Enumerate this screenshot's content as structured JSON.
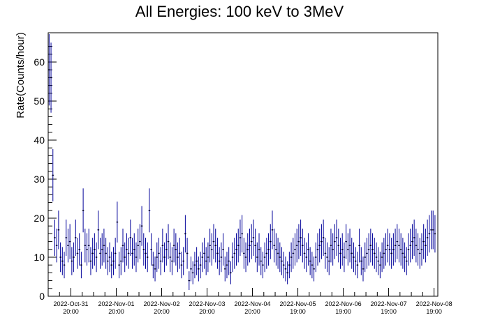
{
  "chart_data": {
    "type": "scatter",
    "title": "All Energies:  100 keV to 3MeV",
    "xlabel": "",
    "ylabel": "Rate(Counts/hour)",
    "ylim": [
      0,
      67.5
    ],
    "xlim": [
      0,
      206
    ],
    "y_ticks": [
      0,
      10,
      20,
      30,
      40,
      50,
      60
    ],
    "x_tick_labels": [
      {
        "x": 12,
        "date": "2022-Oct-31",
        "time": "20:00"
      },
      {
        "x": 36,
        "date": "2022-Nov-01",
        "time": "20:00"
      },
      {
        "x": 60,
        "date": "2022-Nov-02",
        "time": "20:00"
      },
      {
        "x": 84,
        "date": "2022-Nov-03",
        "time": "20:00"
      },
      {
        "x": 108,
        "date": "2022-Nov-04",
        "time": "20:00"
      },
      {
        "x": 132,
        "date": "2022-Nov-05",
        "time": "19:00"
      },
      {
        "x": 156,
        "date": "2022-Nov-06",
        "time": "19:00"
      },
      {
        "x": 180,
        "date": "2022-Nov-07",
        "time": "19:00"
      },
      {
        "x": 204,
        "date": "2022-Nov-08",
        "time": "19:00"
      }
    ],
    "grid": false,
    "legend": "none",
    "marker_color": "#000099",
    "series": [
      {
        "values": [
          58,
          56,
          31,
          15,
          13,
          17,
          10,
          9,
          8,
          15,
          13,
          14,
          9,
          10,
          15,
          11,
          12,
          8,
          22,
          13,
          12,
          13,
          9,
          11,
          12,
          10,
          17,
          11,
          12,
          13,
          11,
          9,
          10,
          8,
          9,
          11,
          19,
          8,
          9,
          13,
          10,
          12,
          11,
          15,
          11,
          12,
          10,
          13,
          14,
          18,
          12,
          11,
          10,
          22,
          12,
          8,
          7,
          10,
          11,
          9,
          13,
          10,
          12,
          14,
          10,
          9,
          13,
          12,
          10,
          11,
          8,
          9,
          16,
          11,
          4,
          7,
          6,
          8,
          9,
          7,
          8,
          10,
          11,
          9,
          10,
          13,
          12,
          14,
          13,
          11,
          9,
          10,
          12,
          7,
          8,
          9,
          6,
          10,
          11,
          12,
          13,
          15,
          16,
          11,
          10,
          12,
          13,
          14,
          15,
          13,
          10,
          12,
          9,
          8,
          10,
          11,
          12,
          14,
          17,
          13,
          12,
          11,
          10,
          9,
          8,
          7,
          6,
          8,
          10,
          11,
          12,
          13,
          14,
          15,
          13,
          11,
          10,
          12,
          9,
          8,
          7,
          10,
          12,
          13,
          14,
          15,
          11,
          10,
          9,
          13,
          12,
          14,
          15,
          13,
          11,
          12,
          10,
          14,
          12,
          13,
          11,
          10,
          9,
          8,
          13,
          9,
          7,
          10,
          11,
          12,
          13,
          12,
          11,
          10,
          9,
          8,
          10,
          11,
          12,
          13,
          12,
          11,
          12,
          13,
          14,
          13,
          12,
          11,
          10,
          9,
          12,
          13,
          14,
          15,
          13,
          12,
          11,
          12,
          14,
          13,
          15,
          16,
          17,
          17,
          16
        ]
      }
    ]
  }
}
